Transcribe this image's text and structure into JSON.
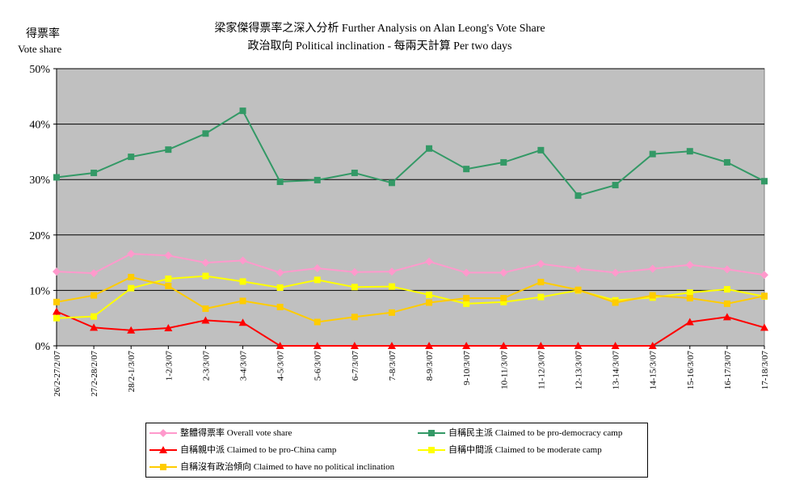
{
  "title_line1": "梁家傑得票率之深入分析 Further Analysis on Alan Leong's Vote Share",
  "title_line2": "政治取向 Political inclination - 每兩天計算 Per two days",
  "ylabel_zh": "得票率",
  "ylabel_en": "Vote share",
  "chart_data": {
    "type": "line",
    "title": "梁家傑得票率之深入分析 Further Analysis on Alan Leong's Vote Share / 政治取向 Political inclination - 每兩天計算 Per two days",
    "ylabel": "得票率 Vote share",
    "xlabel": "",
    "ylim": [
      0,
      50
    ],
    "yticks": [
      "0%",
      "10%",
      "20%",
      "30%",
      "40%",
      "50%"
    ],
    "grid": true,
    "legend_position": "bottom",
    "categories": [
      "26/2-27/2/07",
      "27/2-28/2/07",
      "28/2-1/3/07",
      "1-2/3/07",
      "2-3/3/07",
      "3-4/3/07",
      "4-5/3/07",
      "5-6/3/07",
      "6-7/3/07",
      "7-8/3/07",
      "8-9/3/07",
      "9-10/3/07",
      "10-11/3/07",
      "11-12/3/07",
      "12-13/3/07",
      "13-14/3/07",
      "14-15/3/07",
      "15-16/3/07",
      "16-17/3/07",
      "17-18/3/07"
    ],
    "series": [
      {
        "name": "整體得票率 Overall vote share",
        "color": "#ff99cc",
        "marker": "diamond",
        "values": [
          13.4,
          13.1,
          16.6,
          16.3,
          15.0,
          15.4,
          13.2,
          14.0,
          13.3,
          13.4,
          15.2,
          13.2,
          13.2,
          14.8,
          13.9,
          13.2,
          13.9,
          14.6,
          13.8,
          12.8
        ]
      },
      {
        "name": "自稱民主派 Claimed to be pro-democracy camp",
        "color": "#339966",
        "marker": "square",
        "values": [
          30.4,
          31.2,
          34.1,
          35.4,
          38.3,
          42.4,
          29.6,
          29.9,
          31.2,
          29.4,
          35.6,
          31.9,
          33.1,
          35.3,
          27.1,
          29.0,
          34.6,
          35.1,
          33.1,
          29.7
        ]
      },
      {
        "name": "自稱親中派 Claimed to be pro-China camp",
        "color": "#ff0000",
        "marker": "triangle",
        "values": [
          6.2,
          3.3,
          2.8,
          3.2,
          4.6,
          4.2,
          0,
          0,
          0,
          0,
          0,
          0,
          0,
          0,
          0,
          0,
          0,
          4.3,
          5.2,
          3.3
        ]
      },
      {
        "name": "自稱中間派 Claimed to be moderate camp",
        "color": "#ffff00",
        "marker": "square",
        "values": [
          5.0,
          5.3,
          10.4,
          12.1,
          12.6,
          11.6,
          10.5,
          11.9,
          10.6,
          10.7,
          9.2,
          7.6,
          7.9,
          8.8,
          10.0,
          8.2,
          8.7,
          9.6,
          10.2,
          8.9
        ]
      },
      {
        "name": "自稱沒有政治傾向 Claimed to have no political inclination",
        "color": "#ffcc00",
        "marker": "square",
        "values": [
          7.9,
          9.1,
          12.4,
          10.8,
          6.7,
          8.1,
          7.0,
          4.3,
          5.2,
          6.0,
          7.8,
          8.6,
          8.6,
          11.5,
          10.1,
          7.8,
          9.1,
          8.6,
          7.6,
          9.0
        ]
      }
    ]
  },
  "legend": {
    "overall": "整體得票率 Overall vote share",
    "prodem": "自稱民主派 Claimed to be pro-democracy camp",
    "prochina": "自稱親中派 Claimed to be pro-China camp",
    "moderate": "自稱中間派 Claimed to be moderate camp",
    "none": "自稱沒有政治傾向 Claimed to have no political inclination"
  }
}
